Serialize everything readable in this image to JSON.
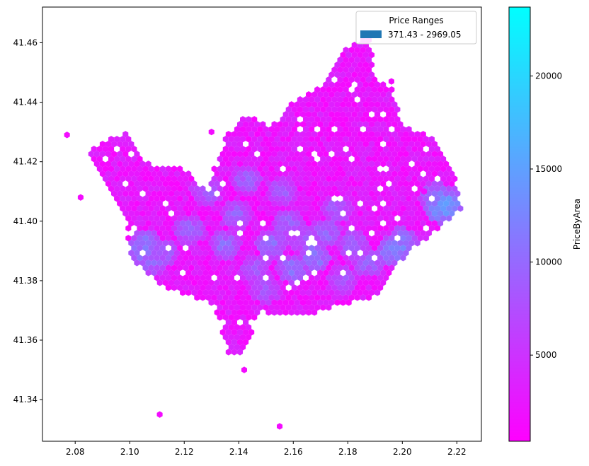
{
  "chart_data": {
    "type": "hexbin",
    "x_ticks": [
      "2.08",
      "2.10",
      "2.12",
      "2.14",
      "2.16",
      "2.18",
      "2.20",
      "2.22"
    ],
    "y_ticks": [
      "41.34",
      "41.36",
      "41.38",
      "41.40",
      "41.42",
      "41.44",
      "41.46"
    ],
    "xlim": [
      2.068,
      2.229
    ],
    "ylim": [
      41.326,
      41.472
    ],
    "grid": false,
    "legend": {
      "title": "Price Ranges",
      "placement": "top-right",
      "entries": [
        {
          "label": "371.43 - 2969.05",
          "color": "#1f77b4"
        }
      ]
    },
    "colorbar": {
      "label": "PriceByArea",
      "ticks": [
        "5000",
        "10000",
        "15000",
        "20000"
      ],
      "tick_values": [
        5000,
        10000,
        15000,
        20000
      ],
      "range": [
        371.43,
        23700
      ],
      "colormap": "cool_r",
      "color_low": "#ff00ff",
      "color_high": "#00ffff"
    },
    "hex_size_x": 0.0021,
    "main_region": {
      "description_values": "dense hexagonal bins, mostly low price (magenta) with mid price (purple/blue) concentrated in center",
      "outline": [
        [
          2.112,
          41.378
        ],
        [
          2.1,
          41.388
        ],
        [
          2.098,
          41.403
        ],
        [
          2.092,
          41.412
        ],
        [
          2.085,
          41.424
        ],
        [
          2.098,
          41.43
        ],
        [
          2.108,
          41.418
        ],
        [
          2.12,
          41.418
        ],
        [
          2.128,
          41.41
        ],
        [
          2.135,
          41.428
        ],
        [
          2.142,
          41.436
        ],
        [
          2.152,
          41.432
        ],
        [
          2.16,
          41.44
        ],
        [
          2.172,
          41.446
        ],
        [
          2.178,
          41.458
        ],
        [
          2.188,
          41.462
        ],
        [
          2.19,
          41.448
        ],
        [
          2.196,
          41.445
        ],
        [
          2.2,
          41.432
        ],
        [
          2.212,
          41.428
        ],
        [
          2.22,
          41.413
        ],
        [
          2.222,
          41.404
        ],
        [
          2.21,
          41.395
        ],
        [
          2.198,
          41.385
        ],
        [
          2.192,
          41.375
        ],
        [
          2.178,
          41.372
        ],
        [
          2.168,
          41.369
        ],
        [
          2.156,
          41.368
        ],
        [
          2.148,
          41.37
        ],
        [
          2.145,
          41.362
        ],
        [
          2.142,
          41.355
        ],
        [
          2.136,
          41.355
        ],
        [
          2.131,
          41.372
        ],
        [
          2.122,
          41.375
        ]
      ]
    },
    "outlier_bins": [
      {
        "x": 2.077,
        "y": 41.429,
        "v": 1500
      },
      {
        "x": 2.082,
        "y": 41.408,
        "v": 1500
      },
      {
        "x": 2.111,
        "y": 41.335,
        "v": 1500
      },
      {
        "x": 2.155,
        "y": 41.331,
        "v": 1500
      },
      {
        "x": 2.142,
        "y": 41.35,
        "v": 1500
      },
      {
        "x": 2.13,
        "y": 41.43,
        "v": 1500
      },
      {
        "x": 2.196,
        "y": 41.447,
        "v": 1500
      },
      {
        "x": 2.208,
        "y": 41.41,
        "v": 1500
      }
    ],
    "highlight_bins": [
      {
        "x": 2.104,
        "y": 41.39,
        "v": 12000
      },
      {
        "x": 2.108,
        "y": 41.386,
        "v": 11000
      },
      {
        "x": 2.106,
        "y": 41.392,
        "v": 12500
      },
      {
        "x": 2.112,
        "y": 41.389,
        "v": 10500
      },
      {
        "x": 2.122,
        "y": 41.397,
        "v": 11000
      },
      {
        "x": 2.135,
        "y": 41.392,
        "v": 11500
      },
      {
        "x": 2.139,
        "y": 41.402,
        "v": 10500
      },
      {
        "x": 2.146,
        "y": 41.384,
        "v": 10000
      },
      {
        "x": 2.152,
        "y": 41.392,
        "v": 12000
      },
      {
        "x": 2.158,
        "y": 41.399,
        "v": 11000
      },
      {
        "x": 2.164,
        "y": 41.394,
        "v": 10000
      },
      {
        "x": 2.168,
        "y": 41.388,
        "v": 13000
      },
      {
        "x": 2.172,
        "y": 41.396,
        "v": 11000
      },
      {
        "x": 2.176,
        "y": 41.404,
        "v": 10000
      },
      {
        "x": 2.182,
        "y": 41.392,
        "v": 10500
      },
      {
        "x": 2.188,
        "y": 41.386,
        "v": 11000
      },
      {
        "x": 2.196,
        "y": 41.39,
        "v": 13500
      },
      {
        "x": 2.2,
        "y": 41.393,
        "v": 14000
      },
      {
        "x": 2.214,
        "y": 41.404,
        "v": 15000
      },
      {
        "x": 2.216,
        "y": 41.405,
        "v": 16500
      },
      {
        "x": 2.212,
        "y": 41.408,
        "v": 13000
      },
      {
        "x": 2.218,
        "y": 41.407,
        "v": 14000
      },
      {
        "x": 2.156,
        "y": 41.41,
        "v": 10000
      },
      {
        "x": 2.143,
        "y": 41.414,
        "v": 10500
      },
      {
        "x": 2.128,
        "y": 41.41,
        "v": 10000
      },
      {
        "x": 2.16,
        "y": 41.384,
        "v": 12000
      },
      {
        "x": 2.15,
        "y": 41.377,
        "v": 9500
      },
      {
        "x": 2.178,
        "y": 41.38,
        "v": 9500
      }
    ]
  }
}
